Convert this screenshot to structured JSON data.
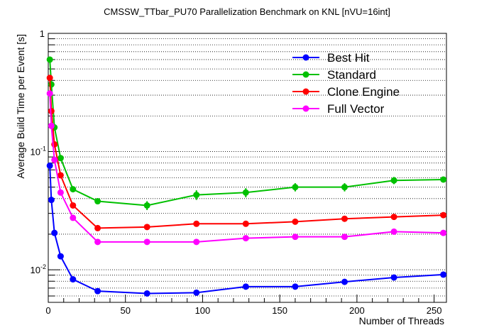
{
  "chart_data": {
    "type": "line",
    "title": "CMSSW_TTbar_PU70 Parallelization Benchmark on KNL [nVU=16int]",
    "xlabel": "Number of Threads",
    "ylabel": "Average Build Time per Event [s]",
    "xlim": [
      0,
      258
    ],
    "ylim": [
      0.0053,
      1.0
    ],
    "yscale": "log",
    "grid": "horizontal dotted",
    "legend_position": "top-right",
    "x_ticks": [
      0,
      50,
      100,
      150,
      200,
      250
    ],
    "x_tick_labels": [
      "0",
      "50",
      "100",
      "150",
      "200",
      "250"
    ],
    "y_ticks": [
      0.01,
      0.1,
      1
    ],
    "y_tick_labels": [
      {
        "base": "10",
        "exp": "-2"
      },
      {
        "base": "10",
        "exp": "-1"
      },
      {
        "base": "1",
        "exp": ""
      }
    ],
    "x": [
      1,
      2,
      4,
      8,
      16,
      32,
      64,
      96,
      128,
      160,
      192,
      224,
      256
    ],
    "series": [
      {
        "name": "Best Hit",
        "color": "#0000ff",
        "values": [
          0.076,
          0.039,
          0.0205,
          0.013,
          0.0083,
          0.0066,
          0.0063,
          0.0064,
          0.0072,
          0.0072,
          0.0079,
          0.0086,
          0.0091
        ],
        "errors": [
          0,
          0,
          0,
          0,
          0,
          0,
          0.0002,
          0.0002,
          0,
          0,
          0,
          0,
          0
        ]
      },
      {
        "name": "Standard",
        "color": "#00c000",
        "values": [
          0.6,
          0.37,
          0.16,
          0.088,
          0.048,
          0.038,
          0.035,
          0.043,
          0.045,
          0.05,
          0.05,
          0.057,
          0.058
        ],
        "errors": [
          0.03,
          0.02,
          0,
          0.005,
          0,
          0,
          0.003,
          0.004,
          0.004,
          0.004,
          0.004,
          0.004,
          0.003
        ]
      },
      {
        "name": "Clone Engine",
        "color": "#ff0000",
        "values": [
          0.42,
          0.22,
          0.115,
          0.063,
          0.035,
          0.0225,
          0.023,
          0.0245,
          0.0245,
          0.0255,
          0.027,
          0.028,
          0.029
        ],
        "errors": [
          0,
          0,
          0,
          0,
          0,
          0,
          0,
          0,
          0,
          0,
          0,
          0,
          0
        ]
      },
      {
        "name": "Full Vector",
        "color": "#ff00ff",
        "values": [
          0.31,
          0.165,
          0.085,
          0.045,
          0.0275,
          0.0172,
          0.0172,
          0.0172,
          0.0185,
          0.019,
          0.019,
          0.021,
          0.0205
        ],
        "errors": [
          0,
          0,
          0,
          0,
          0,
          0,
          0,
          0,
          0,
          0,
          0,
          0,
          0
        ]
      }
    ]
  }
}
